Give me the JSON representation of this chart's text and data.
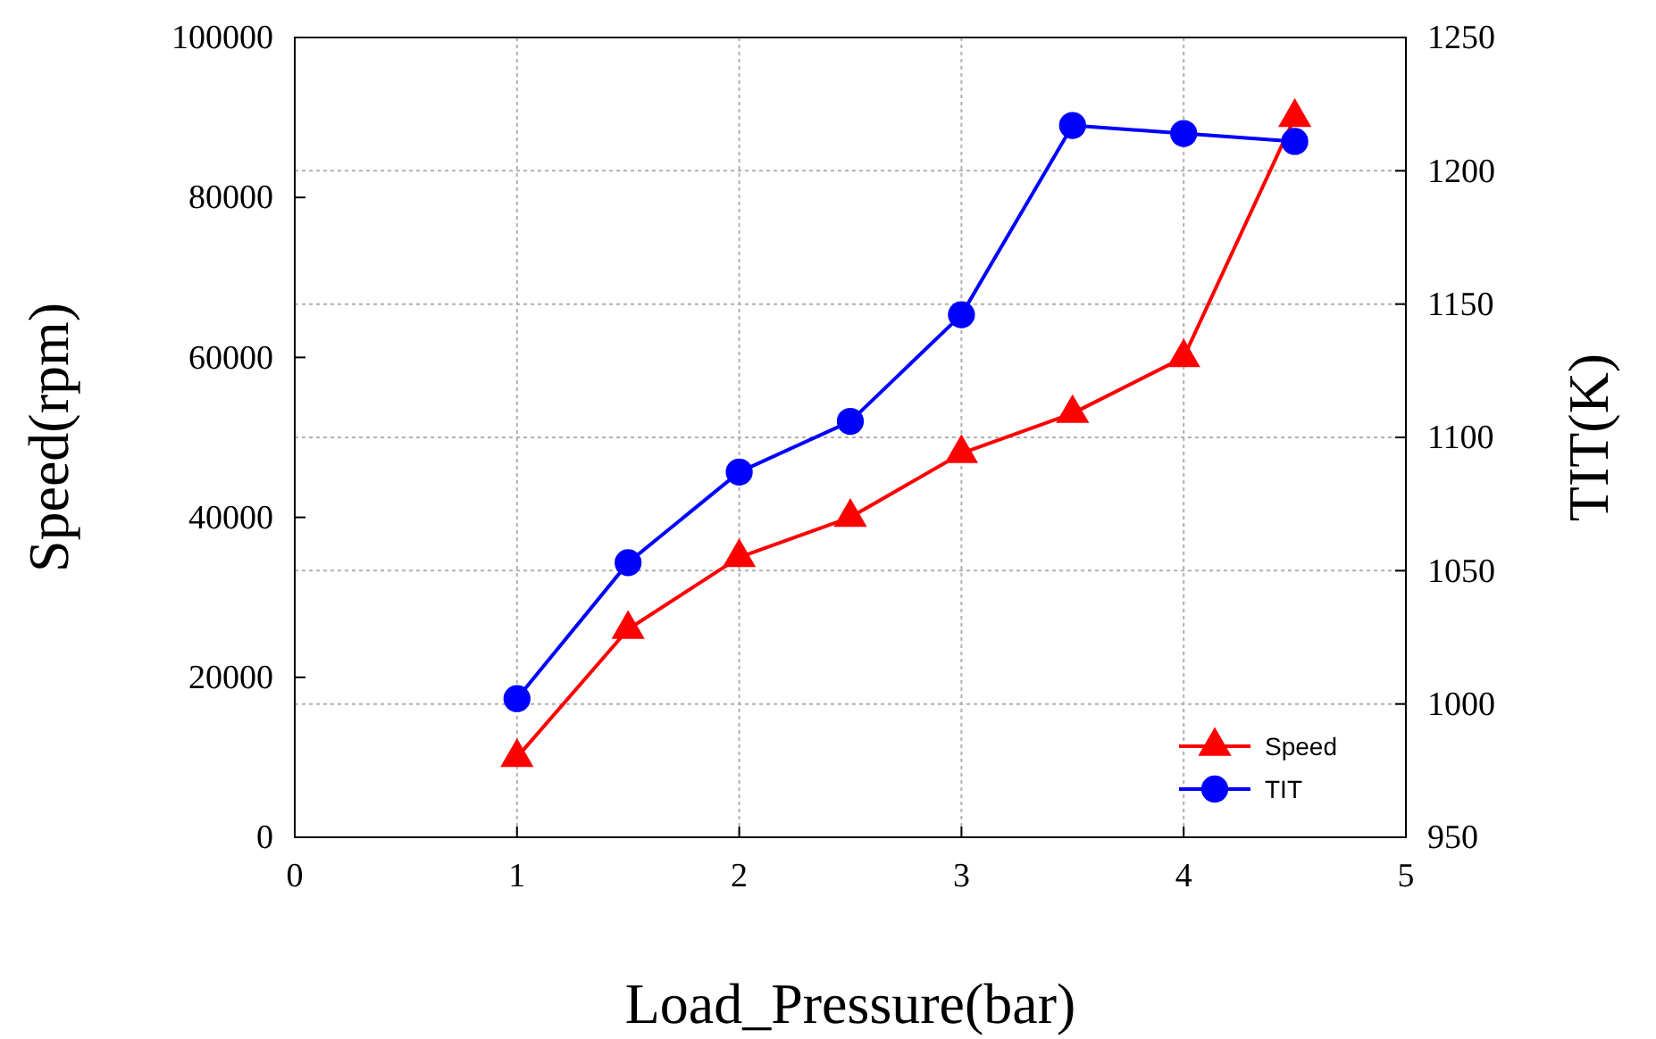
{
  "chart_data": {
    "type": "line",
    "xlabel": "Load_Pressure(bar)",
    "ylabel": "Speed(rpm)",
    "y2label": "TIT(K)",
    "x": [
      1,
      1.5,
      2,
      2.5,
      3,
      3.5,
      4,
      4.5
    ],
    "xlim": [
      0,
      5
    ],
    "xticks": [
      0,
      1,
      2,
      3,
      4,
      5
    ],
    "ylim": [
      0,
      100000
    ],
    "yticks": [
      0,
      20000,
      40000,
      60000,
      80000,
      100000
    ],
    "y2lim": [
      950,
      1250
    ],
    "y2ticks": [
      950,
      1000,
      1050,
      1100,
      1150,
      1200,
      1250
    ],
    "grid": true,
    "legend": "bottom right",
    "series": [
      {
        "name": "Speed",
        "color": "#ff0000",
        "marker": "triangle",
        "values": [
          10000,
          26000,
          35000,
          40000,
          48000,
          53000,
          60000,
          90000
        ]
      },
      {
        "name": "TIT",
        "color": "#0000ff",
        "marker": "circle",
        "axis": "y2",
        "values": [
          1002,
          1053,
          1087,
          1106,
          1146,
          1217,
          1214,
          1211
        ]
      }
    ]
  }
}
